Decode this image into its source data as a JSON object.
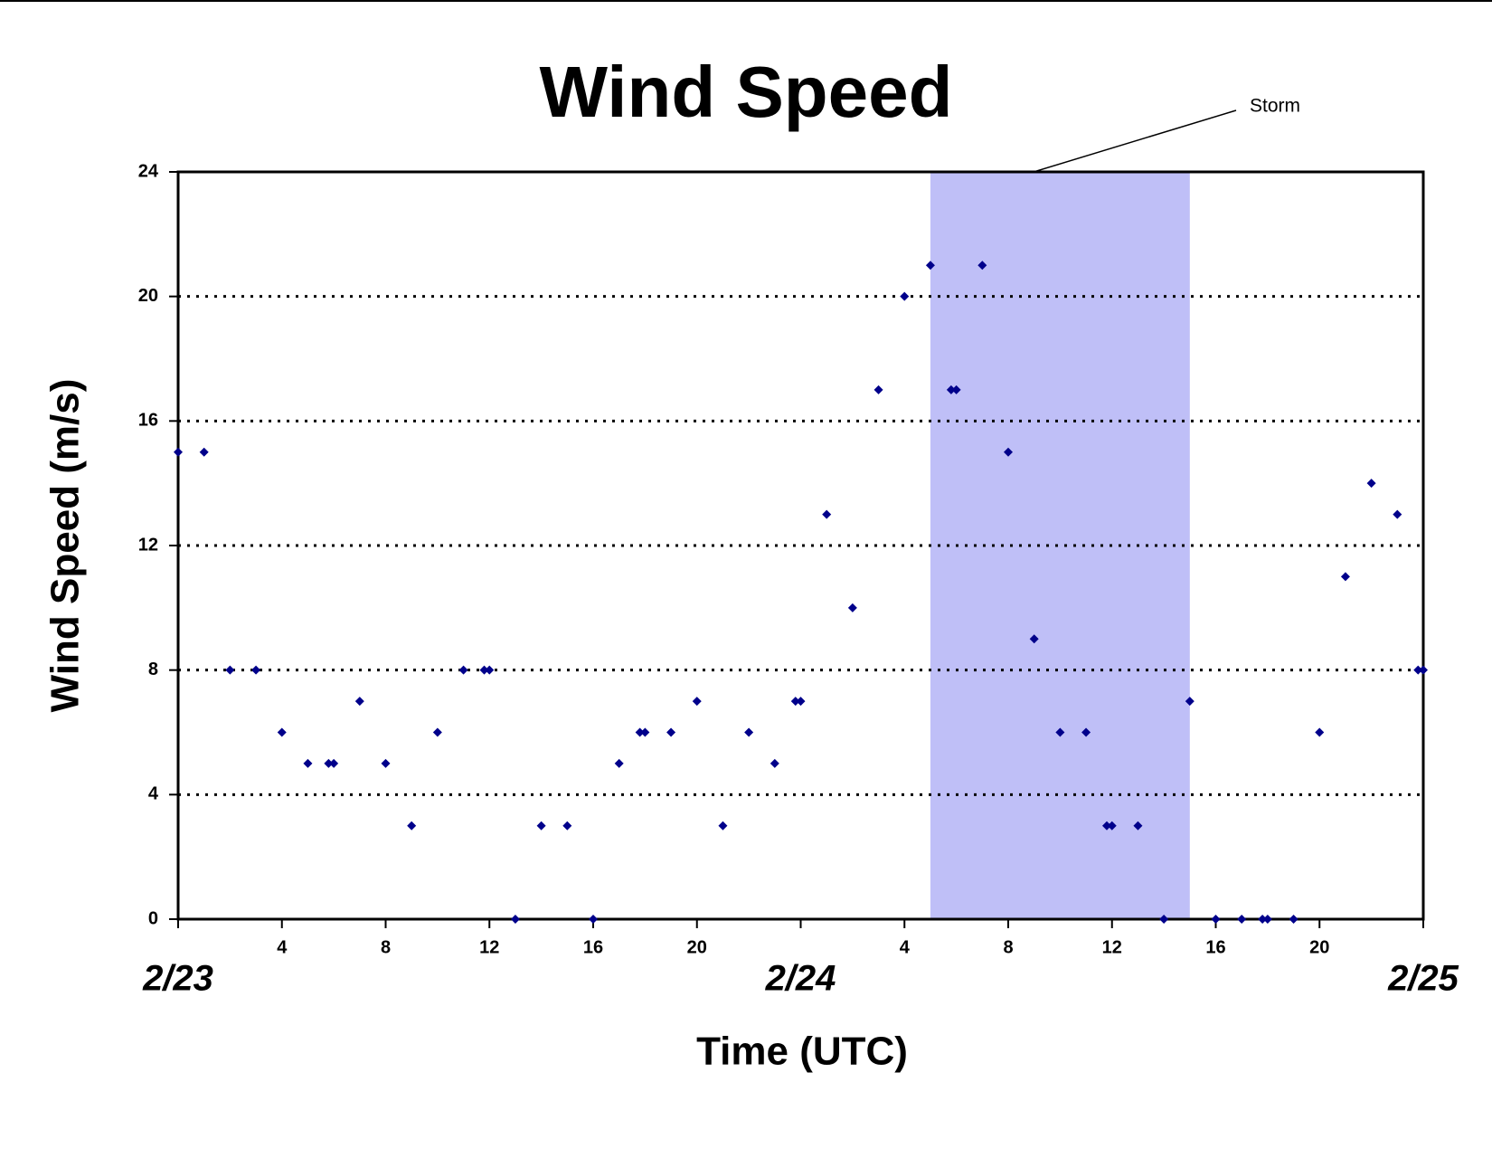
{
  "chart_data": {
    "type": "scatter",
    "title": "Wind Speed",
    "x_label": "Time (UTC)",
    "y_label": "Wind Speed (m/s)",
    "x": [
      0,
      1,
      2,
      3,
      4,
      5,
      5.8,
      6,
      7,
      8,
      9,
      10,
      11,
      11.8,
      12,
      13,
      14,
      15,
      16,
      17,
      17.8,
      18,
      19,
      20,
      21,
      22,
      23,
      23.8,
      24,
      25,
      26,
      27,
      28,
      29,
      29.8,
      30,
      31,
      32,
      33,
      34,
      35,
      35.8,
      36,
      37,
      38,
      39,
      40,
      41,
      41.8,
      42,
      43,
      44,
      45,
      46,
      47,
      47.8,
      48
    ],
    "series": [
      {
        "name": "Wind Speed",
        "color": "#00008b",
        "values": [
          15,
          15,
          8,
          8,
          6,
          5,
          5,
          5,
          7,
          5,
          3,
          6,
          8,
          8,
          8,
          0,
          3,
          3,
          0,
          5,
          6,
          6,
          6,
          7,
          3,
          6,
          5,
          7,
          7,
          13,
          10,
          17,
          20,
          21,
          17,
          17,
          21,
          15,
          9,
          6,
          6,
          3,
          3,
          3,
          0,
          7,
          0,
          0,
          0,
          0,
          0,
          6,
          11,
          14,
          13,
          8,
          8
        ]
      }
    ],
    "xlim": [
      0,
      48
    ],
    "xticks": [
      {
        "value": 0,
        "label": "2/23"
      },
      4,
      8,
      12,
      16,
      20,
      {
        "value": 24,
        "label": "2/24"
      },
      {
        "value": 28,
        "label": "4"
      },
      {
        "value": 32,
        "label": "8"
      },
      {
        "value": 36,
        "label": "12"
      },
      {
        "value": 40,
        "label": "16"
      },
      {
        "value": 44,
        "label": "20"
      },
      {
        "value": 48,
        "label": "2/25"
      }
    ],
    "ylim": [
      0,
      24
    ],
    "yticks": [
      0,
      4,
      8,
      12,
      16,
      20,
      24
    ],
    "grid": true,
    "storm": {
      "label": "Storm",
      "x": [
        29,
        39
      ],
      "color": "#bfbff7"
    }
  }
}
